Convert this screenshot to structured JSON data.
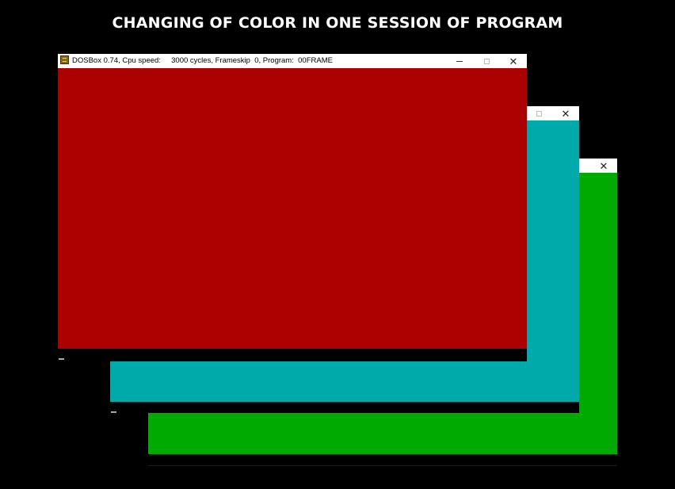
{
  "heading": "CHANGING OF COLOR IN ONE SESSION OF PROGRAM",
  "windows": {
    "front": {
      "title": "DOSBox 0.74, Cpu speed:     3000 cycles, Frameskip  0, Program:  00FRAME",
      "screen_color": "#aa0000",
      "icon": "dosbox-icon"
    },
    "middle": {
      "screen_color": "#00aaaa"
    },
    "back": {
      "screen_color": "#00aa00"
    }
  },
  "controls": {
    "minimize": "minimize-icon",
    "maximize": "maximize-icon",
    "close_glyph": "✕"
  }
}
